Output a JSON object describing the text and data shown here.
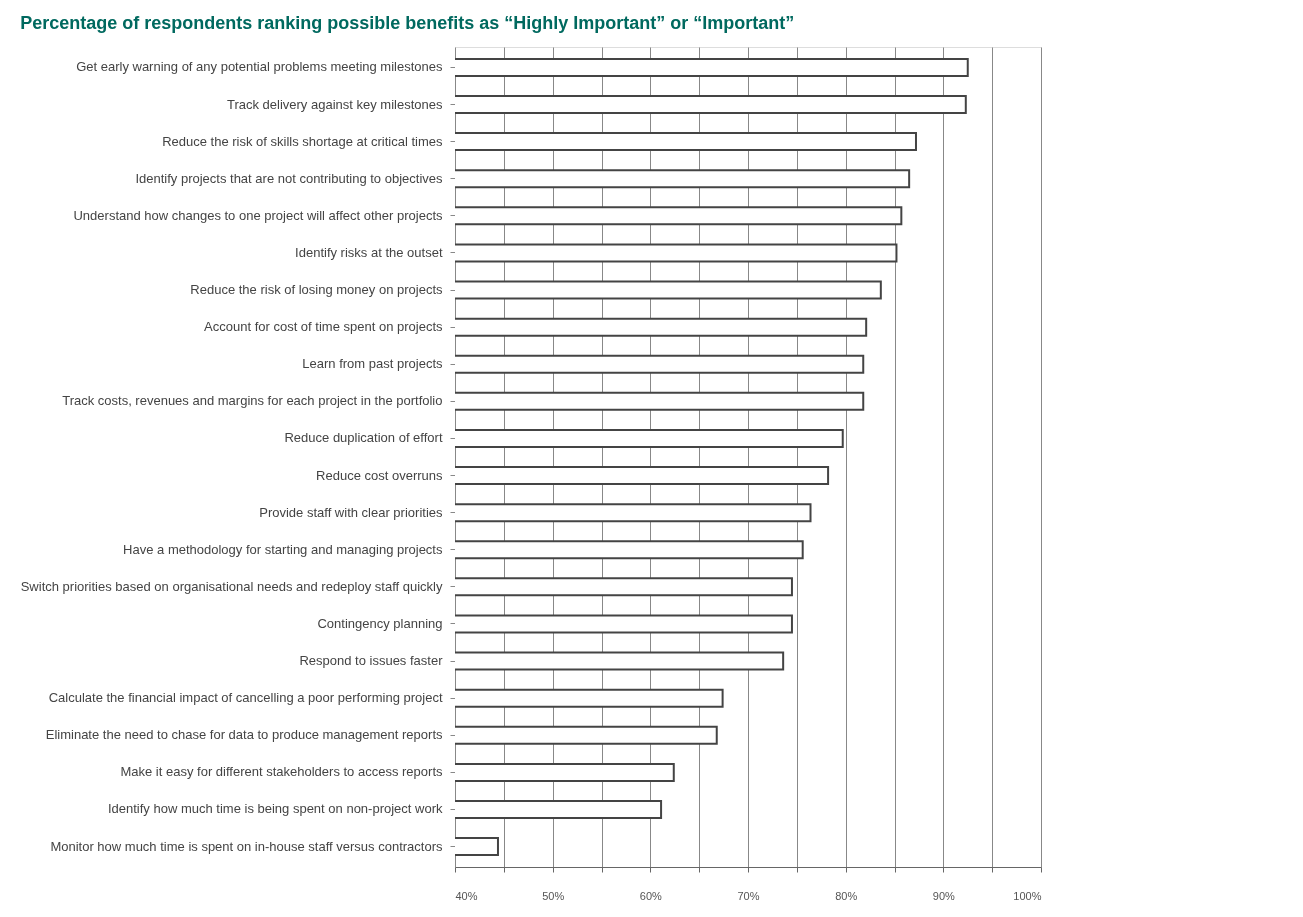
{
  "chart_data": {
    "type": "bar",
    "orientation": "horizontal",
    "title": "Percentage of respondents ranking possible benefits as “Highly Important” or “Important”",
    "categories": [
      "Get early warning of any potential problems meeting milestones",
      "Track delivery against key milestones",
      "Reduce the risk of skills shortage at critical times",
      "Identify projects that are not contributing to objectives",
      "Understand how changes to one project will affect other projects",
      "Identify risks at the outset",
      "Reduce the risk of losing money on projects",
      "Account for cost of time spent on projects",
      "Learn from past projects",
      "Track costs, revenues and margins for each project in the portfolio",
      "Reduce duplication of effort",
      "Reduce cost overruns",
      "Provide staff with clear priorities",
      "Have a methodology for starting and managing projects",
      "Switch priorities based on organisational needs and redeploy staff quickly",
      "Contingency planning",
      "Respond to issues faster",
      "Calculate the financial impact of cancelling a poor performing project",
      "Eliminate the need to chase for data to produce management reports",
      "Make it easy for different stakeholders to access reports",
      "Identify how much time is being spent on non-project work",
      "Monitor how much time is spent on in-house staff versus contractors"
    ],
    "values": [
      92.5,
      92.3,
      87.2,
      86.5,
      85.7,
      85.2,
      83.6,
      82.1,
      81.8,
      81.8,
      79.7,
      78.2,
      76.4,
      75.6,
      74.5,
      74.5,
      73.6,
      67.4,
      66.8,
      62.4,
      61.1,
      44.4
    ],
    "color": "#ffffff",
    "xlim": [
      40,
      100
    ],
    "xticks": [
      {
        "value": 40,
        "label": "40%"
      },
      {
        "value": 45,
        "label": null
      },
      {
        "value": 50,
        "label": "50%"
      },
      {
        "value": 55,
        "label": null
      },
      {
        "value": 60,
        "label": "60%"
      },
      {
        "value": 65,
        "label": null
      },
      {
        "value": 70,
        "label": "70%"
      },
      {
        "value": 75,
        "label": null
      },
      {
        "value": 80,
        "label": "80%"
      },
      {
        "value": 85,
        "label": null
      },
      {
        "value": 90,
        "label": "90%"
      },
      {
        "value": 95,
        "label": null
      },
      {
        "value": 100,
        "label": "100%"
      }
    ],
    "grid": "x"
  }
}
